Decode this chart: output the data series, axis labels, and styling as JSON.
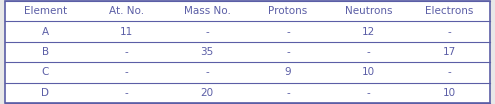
{
  "columns": [
    "Element",
    "At. No.",
    "Mass No.",
    "Protons",
    "Neutrons",
    "Electrons"
  ],
  "rows": [
    [
      "A",
      "11",
      "-",
      "-",
      "12",
      "-"
    ],
    [
      "B",
      "-",
      "35",
      "-",
      "-",
      "17"
    ],
    [
      "C",
      "-",
      "-",
      "9",
      "10",
      "-"
    ],
    [
      "D",
      "-",
      "20",
      "-",
      "-",
      "10"
    ]
  ],
  "edge_color": "#5b5ea6",
  "header_text_color": "#5b5ea6",
  "cell_text_color": "#5b5ea6",
  "bg_color": "#e8e8e8",
  "table_bg": "#ffffff",
  "figsize": [
    4.95,
    1.04
  ],
  "dpi": 100,
  "header_fontsize": 7.5,
  "cell_fontsize": 7.5
}
